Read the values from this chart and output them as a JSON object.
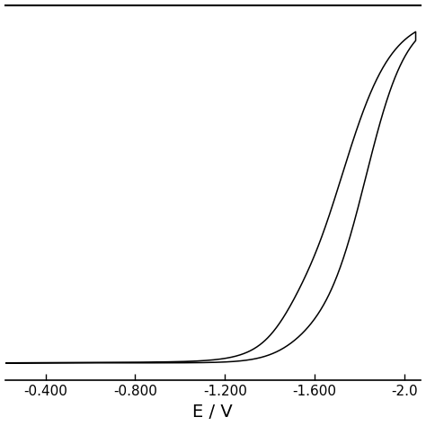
{
  "xlabel": "E / V",
  "xticks": [
    -0.4,
    -0.8,
    -1.2,
    -1.6,
    -2.0
  ],
  "xticklabels": [
    "-0.400",
    "-0.800",
    "-1.200",
    "-1.600",
    "-2.0"
  ],
  "line_color": "#000000",
  "line_width": 1.1,
  "background_color": "#ffffff",
  "xlim_left": -0.22,
  "xlim_right": -2.07,
  "tick_fontsize": 11,
  "xlabel_fontsize": 14
}
